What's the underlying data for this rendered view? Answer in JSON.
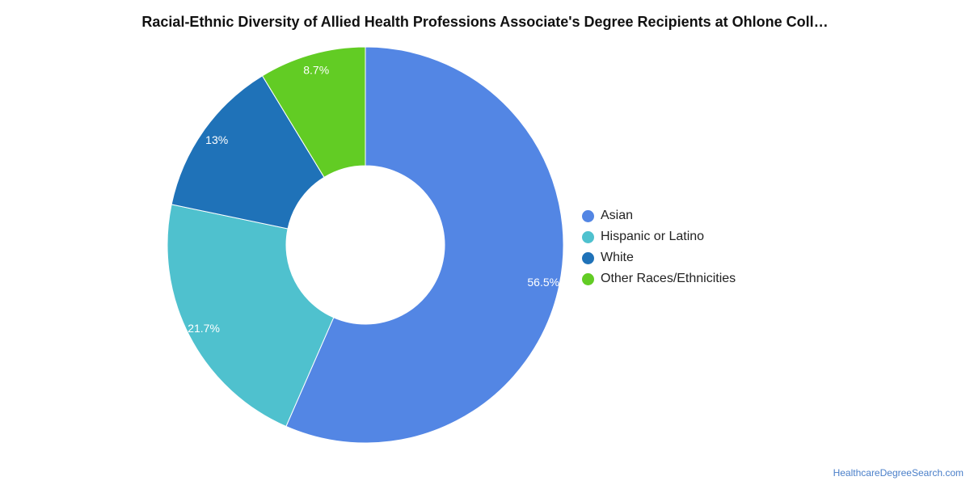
{
  "title": "Racial-Ethnic Diversity of Allied Health Professions Associate's Degree Recipients at Ohlone Coll…",
  "source": "HealthcareDegreeSearch.com",
  "chart_data": {
    "type": "pie",
    "donut": true,
    "title": "Racial-Ethnic Diversity of Allied Health Professions Associate's Degree Recipients at Ohlone Coll…",
    "legend_position": "right",
    "slices": [
      {
        "name": "Asian",
        "value": 56.5,
        "label": "56.5%",
        "color": "#5386e4"
      },
      {
        "name": "Hispanic or Latino",
        "value": 21.7,
        "label": "21.7%",
        "color": "#4fc1ce"
      },
      {
        "name": "White",
        "value": 13,
        "label": "13%",
        "color": "#1f72b8"
      },
      {
        "name": "Other Races/Ethnicities",
        "value": 8.7,
        "label": "8.7%",
        "color": "#62cc24"
      }
    ]
  }
}
